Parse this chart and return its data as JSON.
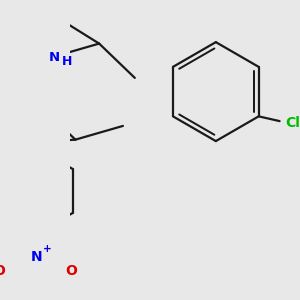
{
  "background_color": "#e8e8e8",
  "bond_color": "#1a1a1a",
  "atom_colors": {
    "N": "#0000ee",
    "O": "#dd0000",
    "Cl": "#00bb00",
    "H": "#0000ee",
    "C": "#1a1a1a"
  },
  "line_width": 1.6,
  "figsize": [
    3.0,
    3.0
  ],
  "dpi": 100
}
